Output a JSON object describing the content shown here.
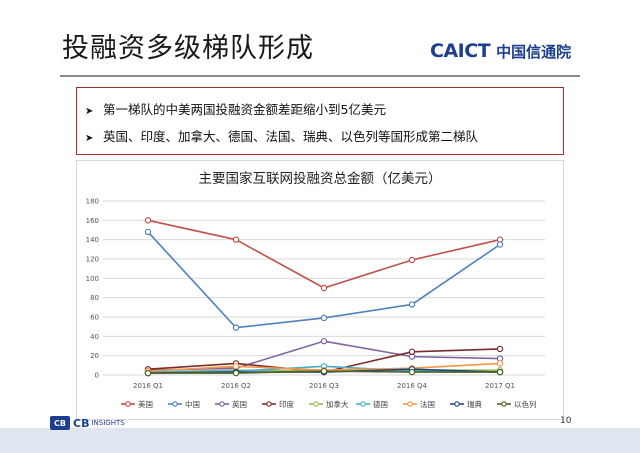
{
  "slide": {
    "title": "投融资多级梯队形成",
    "logo_en": "CAICT",
    "logo_zh": "中国信通院",
    "bullets": [
      "第一梯队的中美两国投融资金额差距缩小到5亿美元",
      "英国、印度、加拿大、德国、法国、瑞典、以色列等国形成第二梯队"
    ],
    "footer_logo_mark": "CB",
    "footer_logo_text": "CB",
    "footer_logo_sub": "INSIGHTS",
    "page_number": "10"
  },
  "colors": {
    "title_rule": "#8a8a8a",
    "bullet_border": "#a0322a",
    "footer_bar": "#dfe6f0",
    "brand_blue": "#1d3f8f"
  },
  "chart_data": {
    "type": "line",
    "title": "主要国家互联网投融资总金额（亿美元）",
    "categories": [
      "2016 Q1",
      "2016 Q2",
      "2016 Q3",
      "2016 Q4",
      "2017 Q1"
    ],
    "ylim": [
      0,
      180
    ],
    "yticks": [
      0,
      20,
      40,
      60,
      80,
      100,
      120,
      140,
      160,
      180
    ],
    "grid": true,
    "legend_position": "bottom",
    "series": [
      {
        "name": "美国",
        "color": "#c0504d",
        "values": [
          160,
          140,
          90,
          119,
          140
        ]
      },
      {
        "name": "中国",
        "color": "#4f81bd",
        "values": [
          148,
          49,
          59,
          73,
          135
        ]
      },
      {
        "name": "英国",
        "color": "#8064a2",
        "values": [
          5,
          7,
          35,
          19,
          17
        ]
      },
      {
        "name": "印度",
        "color": "#7b2c2c",
        "values": [
          6,
          12,
          3,
          24,
          27
        ]
      },
      {
        "name": "加拿大",
        "color": "#9bbb59",
        "values": [
          3,
          5,
          4,
          5,
          5
        ]
      },
      {
        "name": "德国",
        "color": "#4bacc6",
        "values": [
          3,
          4,
          9,
          4,
          3
        ]
      },
      {
        "name": "法国",
        "color": "#f79646",
        "values": [
          4,
          9,
          5,
          7,
          12
        ]
      },
      {
        "name": "瑞典",
        "color": "#1f497d",
        "values": [
          2,
          3,
          3,
          6,
          3
        ]
      },
      {
        "name": "以色列",
        "color": "#4f6228",
        "values": [
          2,
          2,
          4,
          3,
          3
        ]
      }
    ]
  }
}
